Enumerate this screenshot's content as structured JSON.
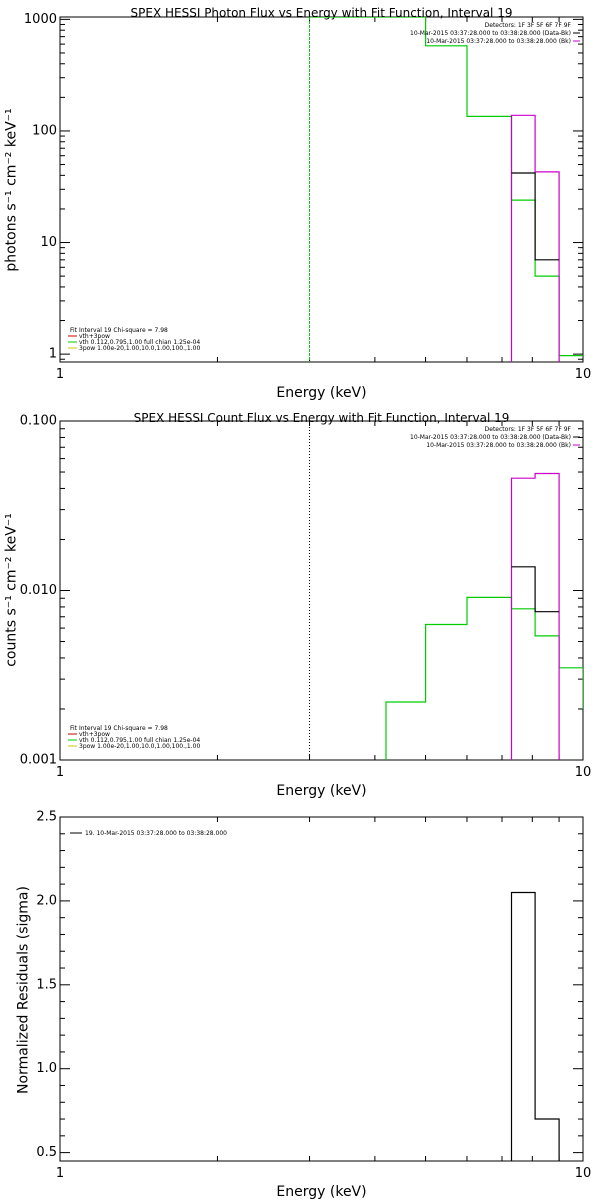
{
  "chart_data": [
    {
      "id": "photon",
      "type": "line",
      "title": "SPEX HESSI Photon Flux vs Energy with Fit Function, Interval 19",
      "xlabel": "Energy (keV)",
      "ylabel": "photons s⁻¹ cm⁻² keV⁻¹",
      "xscale": "log",
      "yscale": "log",
      "xlim": [
        1,
        10
      ],
      "ylim": [
        0.85,
        1050
      ],
      "xticks": [
        {
          "v": 1,
          "label": "1"
        },
        {
          "v": 10,
          "label": "10"
        }
      ],
      "yticks": [
        {
          "v": 1,
          "label": "1"
        },
        {
          "v": 10,
          "label": "10"
        },
        {
          "v": 100,
          "label": "100"
        },
        {
          "v": 1000,
          "label": "1000"
        }
      ],
      "vline": {
        "x": 3,
        "color": "#00cc00",
        "style": "dashed"
      },
      "legend_top": {
        "position": "top-right",
        "lines": [
          {
            "text": "Detectors: 1F 3F 5F 6F 7F 9F",
            "color": ""
          },
          {
            "text": "10-Mar-2015 03:37:28.000 to 03:38:28.000 (Data-Bk)",
            "color": "#000000"
          },
          {
            "text": "10-Mar-2015 03:37:28.000 to 03:38:28.000 (Bk)",
            "color": "#cc00cc"
          }
        ]
      },
      "legend_bottom": {
        "position": "bottom-left",
        "lines": [
          {
            "text": "Fit Interval 19   Chi-square = 7.98",
            "color": ""
          },
          {
            "text": "vth+3pow",
            "color": "#cc0000"
          },
          {
            "text": "vth 0.112,0.795,1.00  full chian 1.25e-04",
            "color": "#00cc00"
          },
          {
            "text": "3pow 1.00e-20,1.00,10.0,1.00,100.,1.00",
            "color": "#cccc00"
          }
        ]
      },
      "series": [
        {
          "color": "#00cc00",
          "points": [
            [
              3,
              1050
            ],
            [
              3,
              1050
            ],
            [
              5,
              1050
            ],
            [
              5,
              580
            ],
            [
              6,
              580
            ],
            [
              6,
              135
            ],
            [
              7.3,
              135
            ],
            [
              7.3,
              24
            ],
            [
              8.1,
              24
            ],
            [
              8.1,
              5
            ],
            [
              9,
              5
            ],
            [
              9,
              0.97
            ],
            [
              10,
              0.97
            ]
          ]
        },
        {
          "color": "#cc00cc",
          "points": [
            [
              7.3,
              0.85
            ],
            [
              7.3,
              138
            ],
            [
              8.1,
              138
            ],
            [
              8.1,
              43
            ],
            [
              9,
              43
            ],
            [
              9,
              0.85
            ]
          ]
        },
        {
          "color": "#000000",
          "points": [
            [
              7.3,
              42
            ],
            [
              8.1,
              42
            ],
            [
              8.1,
              7
            ],
            [
              9,
              7
            ]
          ]
        }
      ]
    },
    {
      "id": "count",
      "type": "line",
      "title": "SPEX HESSI Count Flux vs Energy with Fit Function, Interval 19",
      "xlabel": "Energy (keV)",
      "ylabel": "counts s⁻¹ cm⁻² keV⁻¹",
      "xscale": "log",
      "yscale": "log",
      "xlim": [
        1,
        10
      ],
      "ylim": [
        0.001,
        0.1
      ],
      "xticks": [
        {
          "v": 1,
          "label": "1"
        },
        {
          "v": 10,
          "label": "10"
        }
      ],
      "yticks": [
        {
          "v": 0.001,
          "label": "0.001"
        },
        {
          "v": 0.01,
          "label": "0.010"
        },
        {
          "v": 0.1,
          "label": "0.100"
        }
      ],
      "vline": {
        "x": 3,
        "color": "#000000",
        "style": "dotted"
      },
      "legend_top": {
        "position": "top-right",
        "lines": [
          {
            "text": "Detectors: 1F 3F 5F 6F 7F 9F",
            "color": ""
          },
          {
            "text": "10-Mar-2015 03:37:28.000 to 03:38:28.000 (Data-Bk)",
            "color": "#000000"
          },
          {
            "text": "10-Mar-2015 03:37:28.000 to 03:38:28.000 (Bk)",
            "color": "#cc00cc"
          }
        ]
      },
      "legend_bottom": {
        "position": "bottom-left",
        "lines": [
          {
            "text": "Fit Interval 19   Chi-square = 7.98",
            "color": ""
          },
          {
            "text": "vth+3pow",
            "color": "#cc0000"
          },
          {
            "text": "vth 0.112,0.795,1.00  full chian 1.25e-04",
            "color": "#00cc00"
          },
          {
            "text": "3pow 1.00e-20,1.00,10.0,1.00,100.,1.00",
            "color": "#cccc00"
          }
        ]
      },
      "series": [
        {
          "color": "#00cc00",
          "points": [
            [
              4.2,
              0.001
            ],
            [
              4.2,
              0.0022
            ],
            [
              5,
              0.0022
            ],
            [
              5,
              0.0063
            ],
            [
              6,
              0.0063
            ],
            [
              6,
              0.0091
            ],
            [
              7.3,
              0.0091
            ],
            [
              7.3,
              0.0078
            ],
            [
              8.1,
              0.0078
            ],
            [
              8.1,
              0.0054
            ],
            [
              9,
              0.0054
            ],
            [
              9,
              0.0035
            ],
            [
              10,
              0.0035
            ],
            [
              10,
              0.002
            ]
          ]
        },
        {
          "color": "#cc00cc",
          "points": [
            [
              7.3,
              0.001
            ],
            [
              7.3,
              0.046
            ],
            [
              8.1,
              0.046
            ],
            [
              8.1,
              0.049
            ],
            [
              9,
              0.049
            ],
            [
              9,
              0.001
            ]
          ]
        },
        {
          "color": "#000000",
          "points": [
            [
              7.3,
              0.0138
            ],
            [
              8.1,
              0.0138
            ],
            [
              8.1,
              0.0075
            ],
            [
              9,
              0.0075
            ]
          ]
        }
      ]
    },
    {
      "id": "resid",
      "type": "line",
      "title": "",
      "xlabel": "Energy (keV)",
      "ylabel": "Normalized Residuals (sigma)",
      "xscale": "log",
      "yscale": "linear",
      "xlim": [
        1,
        10
      ],
      "ylim": [
        0.45,
        2.5
      ],
      "xticks": [
        {
          "v": 1,
          "label": "1"
        },
        {
          "v": 10,
          "label": "10"
        }
      ],
      "yticks": [
        {
          "v": 0.5,
          "label": "0.5"
        },
        {
          "v": 1.0,
          "label": "1.0"
        },
        {
          "v": 1.5,
          "label": "1.5"
        },
        {
          "v": 2.0,
          "label": "2.0"
        },
        {
          "v": 2.5,
          "label": "2.5"
        }
      ],
      "legend_top": {
        "position": "top-left",
        "lines": [
          {
            "text": "19. 10-Mar-2015 03:37:28.000 to 03:38:28.000",
            "color": "#000000"
          }
        ]
      },
      "series": [
        {
          "color": "#000000",
          "points": [
            [
              7.3,
              0.45
            ],
            [
              7.3,
              2.05
            ],
            [
              8.1,
              2.05
            ],
            [
              8.1,
              0.7
            ],
            [
              9,
              0.7
            ],
            [
              9,
              0.45
            ]
          ]
        }
      ]
    }
  ]
}
